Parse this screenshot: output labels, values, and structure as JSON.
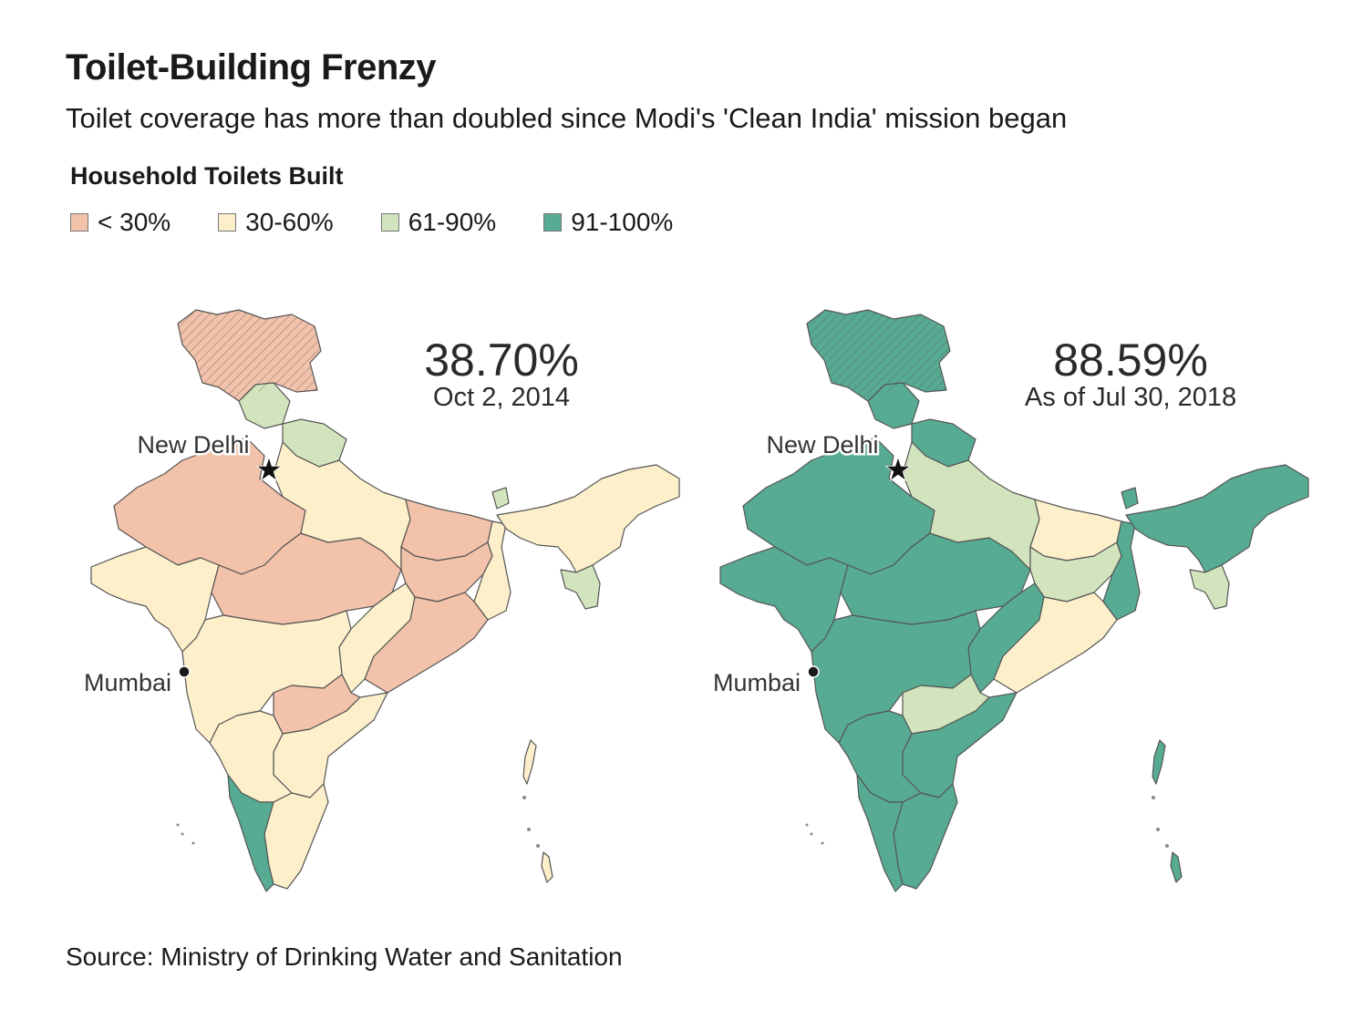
{
  "title": "Toilet-Building Frenzy",
  "subtitle": "Toilet coverage has more than doubled since Modi's 'Clean India' mission began",
  "legend": {
    "title": "Household Toilets Built",
    "items": [
      {
        "label": "< 30%",
        "color": "#f2c2aa"
      },
      {
        "label": "30-60%",
        "color": "#fcefca"
      },
      {
        "label": "61-90%",
        "color": "#d2e4bd"
      },
      {
        "label": "91-100%",
        "color": "#57ab93"
      }
    ]
  },
  "maps": [
    {
      "headline": "38.70%",
      "date": "Oct 2, 2014",
      "capital": "New Delhi",
      "city": "Mumbai",
      "base_color": "#fcefca",
      "colors": {
        "jk": "#f2c2aa",
        "hp": "#d2e4bd",
        "uk": "#d2e4bd",
        "raj": "#f2c2aa",
        "guj": "#fcefca",
        "mp": "#f2c2aa",
        "up": "#fcefca",
        "bih": "#f2c2aa",
        "wb": "#fcefca",
        "jh": "#f2c2aa",
        "cg": "#fcefca",
        "od": "#f2c2aa",
        "mh": "#fcefca",
        "tel": "#f2c2aa",
        "ap": "#fcefca",
        "ka": "#fcefca",
        "tn": "#fcefca",
        "kl": "#57ab93",
        "ne": "#fcefca",
        "ne2": "#d2e4bd",
        "isl": "#fcefca"
      }
    },
    {
      "headline": "88.59%",
      "date": "As of Jul 30, 2018",
      "capital": "New Delhi",
      "city": "Mumbai",
      "base_color": "#57ab93",
      "colors": {
        "jk": "#57ab93",
        "hp": "#57ab93",
        "uk": "#57ab93",
        "raj": "#57ab93",
        "guj": "#57ab93",
        "mp": "#57ab93",
        "up": "#d2e4bd",
        "bih": "#fcefca",
        "wb": "#57ab93",
        "jh": "#d2e4bd",
        "cg": "#57ab93",
        "od": "#fcefca",
        "mh": "#57ab93",
        "tel": "#d2e4bd",
        "ap": "#57ab93",
        "ka": "#57ab93",
        "tn": "#57ab93",
        "kl": "#57ab93",
        "ne": "#57ab93",
        "ne2": "#d2e4bd",
        "isl": "#57ab93"
      }
    }
  ],
  "source": "Source: Ministry of Drinking Water and Sanitation"
}
